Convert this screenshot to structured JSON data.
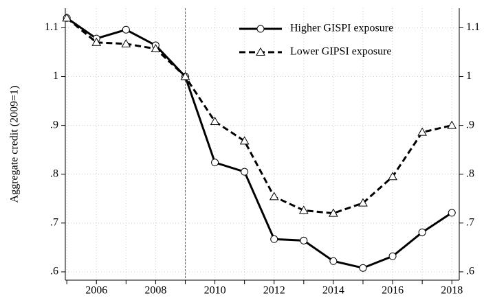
{
  "chart_data": {
    "type": "line",
    "y_label": "Aggregate credit (2009=1)",
    "x": [
      2005,
      2006,
      2007,
      2008,
      2009,
      2010,
      2011,
      2012,
      2013,
      2014,
      2015,
      2016,
      2017,
      2018
    ],
    "series": [
      {
        "name": "Higher GISPI exposure",
        "color": "#000000",
        "dash": "solid",
        "marker": "circle",
        "values": [
          1.12,
          1.078,
          1.096,
          1.064,
          1.0,
          0.824,
          0.805,
          0.667,
          0.664,
          0.622,
          0.608,
          0.632,
          0.681,
          0.721
        ]
      },
      {
        "name": "Lower GIPSI exposure",
        "color": "#000000",
        "dash": "dashed",
        "marker": "triangle",
        "values": [
          1.12,
          1.07,
          1.067,
          1.057,
          1.0,
          0.908,
          0.868,
          0.754,
          0.726,
          0.72,
          0.741,
          0.795,
          0.886,
          0.9
        ]
      }
    ],
    "xlim": [
      2004.95,
      2018.25
    ],
    "xticks": [
      2006,
      2008,
      2010,
      2012,
      2014,
      2016,
      2018
    ],
    "xminor_ticks": [
      2005,
      2007,
      2009,
      2011,
      2013,
      2015,
      2017
    ],
    "ylim": [
      0.583,
      1.14
    ],
    "yticks": [
      {
        "value": 0.6,
        "label": ".6"
      },
      {
        "value": 0.7,
        "label": ".7"
      },
      {
        "value": 0.8,
        "label": ".8"
      },
      {
        "value": 0.9,
        "label": ".9"
      },
      1,
      1.1
    ],
    "vline": 2009,
    "grid": true,
    "right_axis_labels": true,
    "legend": "upper right"
  }
}
